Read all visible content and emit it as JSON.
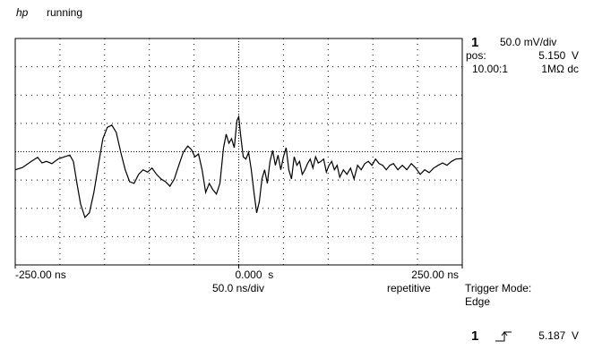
{
  "header": {
    "brand": "hp",
    "status": "running"
  },
  "channel": {
    "number": "1",
    "scale": "50.0 mV/div",
    "pos_label": "pos:",
    "pos_value": "5.150  V",
    "probe": "10.00:1",
    "coupling": "1MΩ dc"
  },
  "timebase": {
    "scale": "50.0 ns/div"
  },
  "trigger": {
    "acquisition": "repetitive",
    "mode_label": "Trigger Mode:",
    "mode": "Edge",
    "source": "1",
    "level": "5.187  V"
  },
  "chart_data": {
    "type": "line",
    "x": [
      -250,
      -242,
      -232,
      -225,
      -220,
      -215,
      -209,
      -202,
      -195,
      -189,
      -185,
      -181,
      -177,
      -172,
      -167,
      -162,
      -157,
      -152,
      -147,
      -142,
      -137,
      -132,
      -127,
      -122,
      -117,
      -112,
      -107,
      -102,
      -97,
      -92,
      -87,
      -82,
      -77,
      -72,
      -67,
      -62,
      -57,
      -53,
      -49,
      -45,
      -41,
      -37,
      -33,
      -29,
      -25,
      -21,
      -17,
      -14,
      -11,
      -8,
      -5,
      -2,
      0,
      2,
      5,
      8,
      11,
      14,
      17,
      20,
      23,
      26,
      29,
      32,
      35,
      38,
      41,
      44,
      47,
      50,
      53,
      56,
      59,
      62,
      65,
      68,
      71,
      74,
      77,
      80,
      83,
      86,
      89,
      92,
      95,
      98,
      101,
      104,
      107,
      110,
      113,
      117,
      121,
      125,
      129,
      133,
      137,
      141,
      145,
      149,
      153,
      157,
      161,
      165,
      169,
      173,
      178,
      183,
      188,
      193,
      198,
      203,
      208,
      213,
      218,
      223,
      228,
      233,
      238,
      243,
      250
    ],
    "series": [
      {
        "color": "#000000",
        "values": [
          -32,
          -28,
          -17,
          -10,
          -20,
          -17,
          -21,
          -13,
          -9,
          -6,
          -17,
          -56,
          -92,
          -116,
          -108,
          -72,
          -24,
          23,
          43,
          47,
          34,
          -1,
          -32,
          -53,
          -56,
          -40,
          -32,
          -36,
          -29,
          -40,
          -48,
          -53,
          -61,
          -48,
          -24,
          -1,
          10,
          4,
          -9,
          -4,
          -32,
          -72,
          -56,
          -67,
          -75,
          -56,
          7,
          31,
          15,
          23,
          7,
          55,
          62,
          31,
          -9,
          -13,
          -1,
          -32,
          -72,
          -108,
          -88,
          -48,
          -32,
          -56,
          -17,
          2,
          -24,
          -6,
          -32,
          -9,
          7,
          -32,
          -48,
          -9,
          -24,
          -17,
          -40,
          -32,
          -21,
          -13,
          -29,
          -9,
          -20,
          -17,
          -13,
          -36,
          -24,
          -17,
          -32,
          -24,
          -45,
          -32,
          -40,
          -29,
          -48,
          -24,
          -32,
          -21,
          -17,
          -24,
          -13,
          -21,
          -24,
          -32,
          -24,
          -21,
          -32,
          -24,
          -32,
          -21,
          -29,
          -40,
          -32,
          -37,
          -29,
          -24,
          -20,
          -24,
          -17,
          -13,
          -12
        ]
      }
    ],
    "xlim": [
      -250,
      250
    ],
    "ylim": [
      -200,
      200
    ],
    "xticks": [
      {
        "value": -250,
        "label": "-250.00 ns"
      },
      {
        "value": 0,
        "label": "0.000  s"
      },
      {
        "value": 250,
        "label": "250.00 ns"
      }
    ],
    "grid": true
  }
}
